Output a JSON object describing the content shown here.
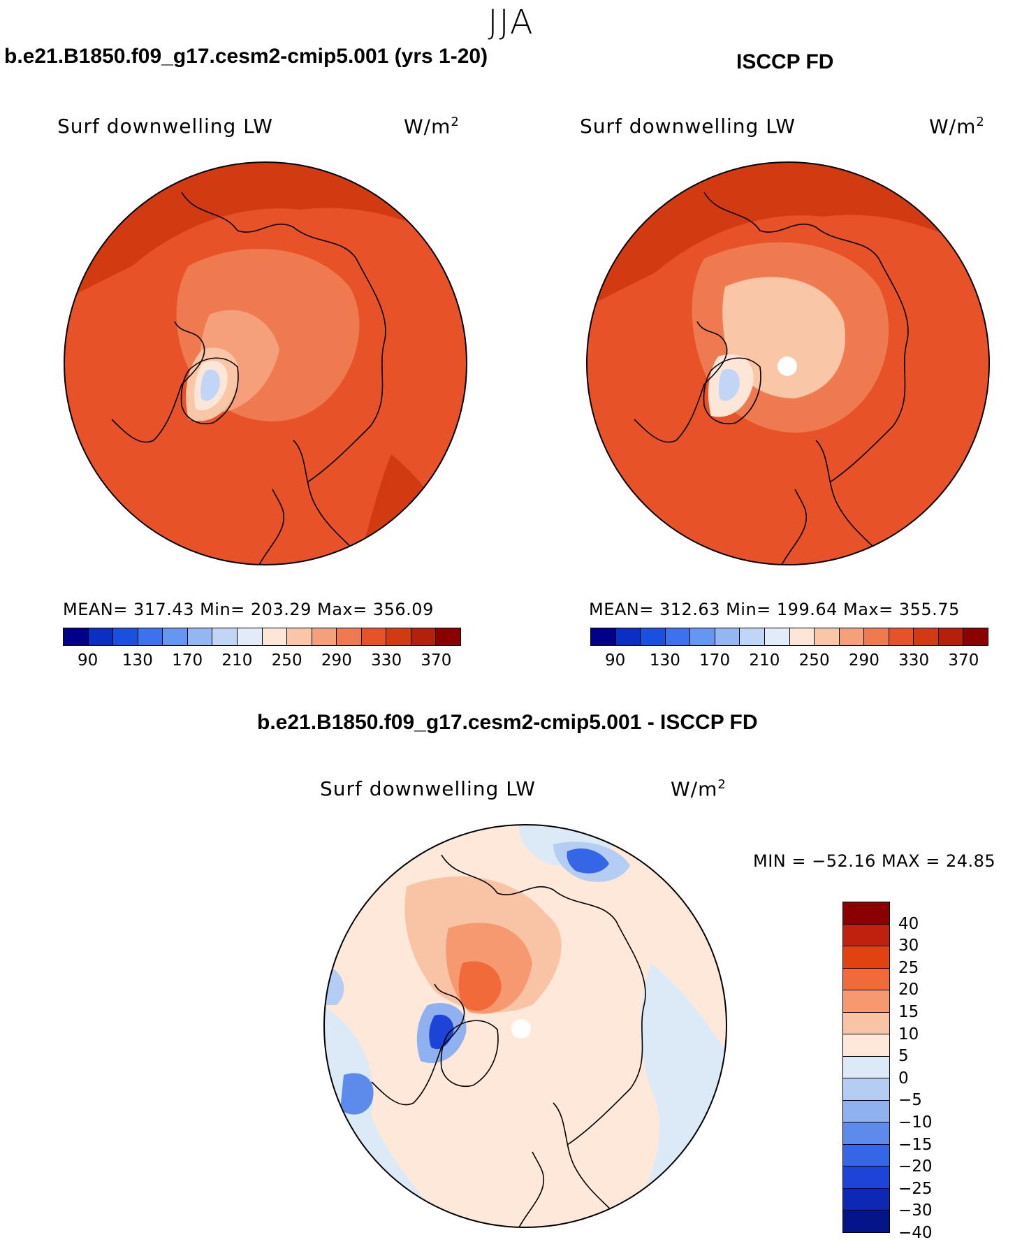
{
  "season": "JJA",
  "top_left": {
    "title": "b.e21.B1850.f09_g17.cesm2-cmip5.001 (yrs 1-20)",
    "variable": "Surf downwelling LW",
    "unit": "W/m",
    "unit_exp": "2",
    "stats": "MEAN= 317.43   Min= 203.29   Max= 356.09"
  },
  "top_right": {
    "title": "ISCCP FD",
    "variable": "Surf downwelling LW",
    "unit": "W/m",
    "unit_exp": "2",
    "stats": "MEAN= 312.63   Min= 199.64   Max= 355.75"
  },
  "bottom": {
    "title": "b.e21.B1850.f09_g17.cesm2-cmip5.001 - ISCCP FD",
    "variable": "Surf downwelling LW",
    "unit": "W/m",
    "unit_exp": "2",
    "stats": "MIN = −52.16 MAX =   24.85"
  },
  "chart_data": [
    {
      "type": "heatmap",
      "projection": "north polar stereographic",
      "title": "b.e21.B1850.f09_g17.cesm2-cmip5.001 (yrs 1-20)",
      "variable": "Surf downwelling LW",
      "unit": "W/m2",
      "mean": 317.43,
      "min": 203.29,
      "max": 356.09,
      "colorbar_colors": [
        "#00008b",
        "#0a2fc4",
        "#1a50e0",
        "#3a72ef",
        "#6496f2",
        "#94b6f4",
        "#c1d6f6",
        "#e1ecf8",
        "#fbe6d8",
        "#f9c6a8",
        "#f5a07a",
        "#f07a50",
        "#e85228",
        "#d23a12",
        "#b5200a",
        "#8b0000"
      ],
      "colorbar_ticks": [
        "90",
        "130",
        "170",
        "210",
        "250",
        "290",
        "330",
        "370"
      ]
    },
    {
      "type": "heatmap",
      "projection": "north polar stereographic",
      "title": "ISCCP FD",
      "variable": "Surf downwelling LW",
      "unit": "W/m2",
      "mean": 312.63,
      "min": 199.64,
      "max": 355.75,
      "colorbar_colors": [
        "#00008b",
        "#0a2fc4",
        "#1a50e0",
        "#3a72ef",
        "#6496f2",
        "#94b6f4",
        "#c1d6f6",
        "#e1ecf8",
        "#fbe6d8",
        "#f9c6a8",
        "#f5a07a",
        "#f07a50",
        "#e85228",
        "#d23a12",
        "#b5200a",
        "#8b0000"
      ],
      "colorbar_ticks": [
        "90",
        "130",
        "170",
        "210",
        "250",
        "290",
        "330",
        "370"
      ]
    },
    {
      "type": "heatmap",
      "projection": "north polar stereographic",
      "title": "b.e21.B1850.f09_g17.cesm2-cmip5.001 - ISCCP FD",
      "variable": "Surf downwelling LW",
      "unit": "W/m2",
      "min": -52.16,
      "max": 24.85,
      "colorbar_colors": [
        "#8b0000",
        "#c0210f",
        "#e2420f",
        "#f06a3a",
        "#f69870",
        "#f9c4a6",
        "#fde8da",
        "#dceaf8",
        "#b6cdf3",
        "#90b1f0",
        "#5d8bec",
        "#3466e6",
        "#1c45d8",
        "#0d28b5",
        "#06148a"
      ],
      "colorbar_ticks": [
        "40",
        "30",
        "25",
        "20",
        "15",
        "10",
        "5",
        "0",
        "−5",
        "−10",
        "−15",
        "−20",
        "−25",
        "−30",
        "−40"
      ]
    }
  ]
}
